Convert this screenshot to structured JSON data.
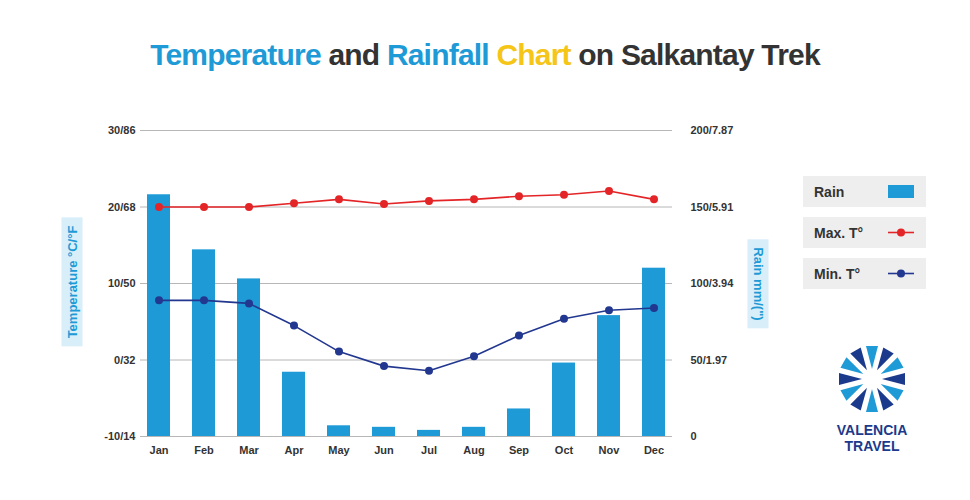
{
  "chart_data": {
    "type": "bar",
    "title": "Temperature and Rainfall Chart on Salkantay Trek",
    "y_label": "Temperature °C/°F",
    "y2_label": "Rain mm/(\")",
    "categories": [
      "Jan",
      "Feb",
      "Mar",
      "Apr",
      "May",
      "Jun",
      "Jul",
      "Aug",
      "Sep",
      "Oct",
      "Nov",
      "Dec"
    ],
    "series": [
      {
        "name": "Rain",
        "type": "bar",
        "axis": "y2",
        "color": "#1e9ad6",
        "values": [
          158,
          122,
          103,
          42,
          7,
          6,
          4,
          6,
          18,
          48,
          79,
          110
        ]
      },
      {
        "name": "Max. T°",
        "type": "line",
        "marker": "circle",
        "color": "#e42528",
        "values": [
          20,
          20,
          20,
          20.5,
          21,
          20.4,
          20.8,
          21,
          21.4,
          21.6,
          22.1,
          21
        ]
      },
      {
        "name": "Min. T°",
        "type": "line",
        "marker": "circle",
        "color": "#22378f",
        "values": [
          7.8,
          7.8,
          7.4,
          4.5,
          1.1,
          -0.8,
          -1.4,
          0.5,
          3.2,
          5.4,
          6.5,
          6.8
        ]
      }
    ],
    "ylim": [
      -10,
      30
    ],
    "yticks": [
      {
        "value": -10,
        "label": "-10/14"
      },
      {
        "value": 0,
        "label": "0/32"
      },
      {
        "value": 10,
        "label": "10/50"
      },
      {
        "value": 20,
        "label": "20/68"
      },
      {
        "value": 30,
        "label": "30/86"
      }
    ],
    "y2lim": [
      0,
      200
    ],
    "y2ticks": [
      0,
      {
        "value": 50,
        "label": "50/1.97"
      },
      {
        "value": 100,
        "label": "100/3.94"
      },
      {
        "value": 150,
        "label": "150/5.91"
      },
      {
        "value": 200,
        "label": "200/7.87"
      }
    ],
    "grid": true,
    "legend": "right",
    "annotations": [
      "VALENCIA TRAVEL"
    ]
  }
}
